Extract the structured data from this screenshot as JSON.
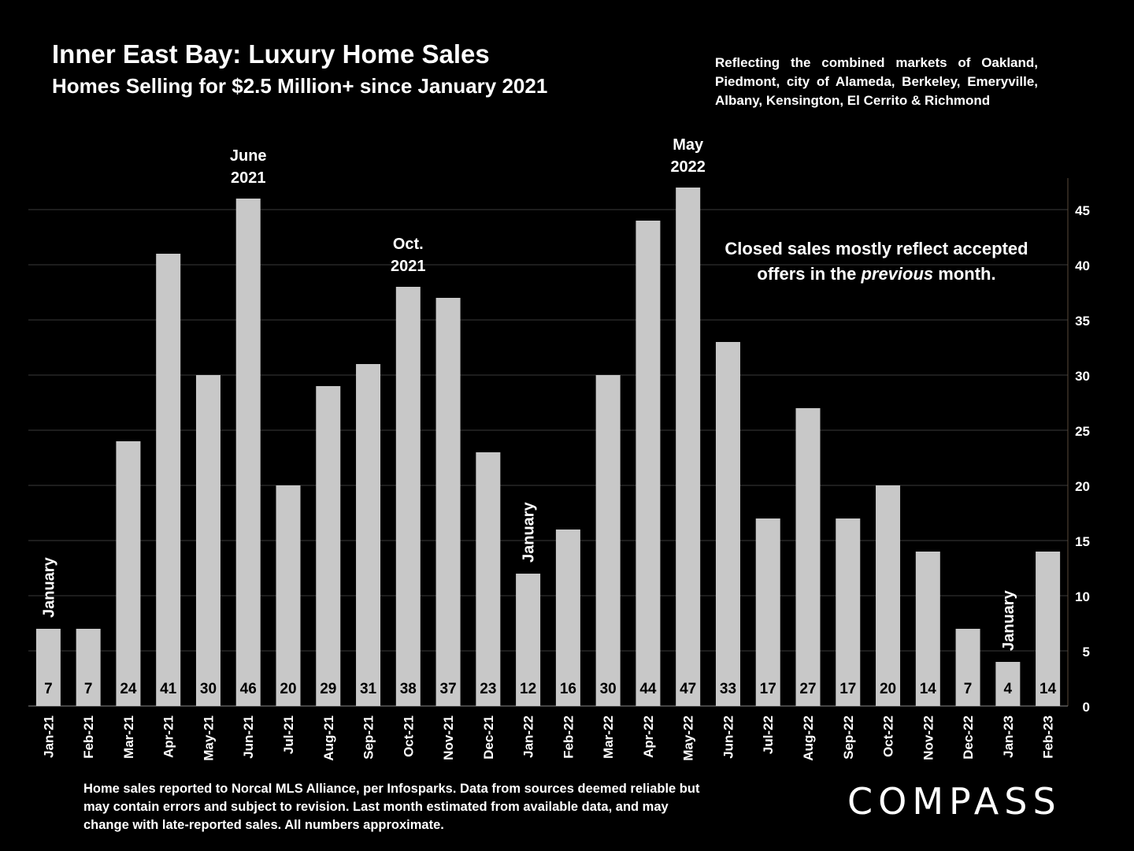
{
  "header": {
    "title": "Inner East Bay: Luxury Home Sales",
    "subtitle": "Homes Selling for $2.5 Million+ since January 2021",
    "note": "Reflecting the combined markets of Oakland, Piedmont, city of Alameda, Berkeley, Emeryville, Albany, Kensington, El Cerrito & Richmond"
  },
  "callout": {
    "line1": "Closed sales mostly reflect accepted",
    "line2_pre": "offers in the ",
    "line2_em": "previous",
    "line2_post": " month."
  },
  "footer": "Home sales reported to Norcal MLS Alliance, per Infosparks. Data from sources deemed reliable but may contain errors and subject to revision.  Last month estimated from available data, and may change with late-reported sales. All numbers approximate.",
  "logo": "COMPASS",
  "colors": {
    "bar": "#c8c8c8",
    "background": "#000000",
    "text": "#ffffff",
    "grid": "#3a3a3a"
  },
  "chart_data": {
    "type": "bar",
    "categories": [
      "Jan-21",
      "Feb-21",
      "Mar-21",
      "Apr-21",
      "May-21",
      "Jun-21",
      "Jul-21",
      "Aug-21",
      "Sep-21",
      "Oct-21",
      "Nov-21",
      "Dec-21",
      "Jan-22",
      "Feb-22",
      "Mar-22",
      "Apr-22",
      "May-22",
      "Jun-22",
      "Jul-22",
      "Aug-22",
      "Sep-22",
      "Oct-22",
      "Nov-22",
      "Dec-22",
      "Jan-23",
      "Feb-23"
    ],
    "values": [
      7,
      7,
      24,
      41,
      30,
      46,
      20,
      29,
      31,
      38,
      37,
      23,
      12,
      16,
      30,
      44,
      47,
      33,
      17,
      27,
      17,
      20,
      14,
      7,
      4,
      14
    ],
    "ylim": [
      0,
      48
    ],
    "yticks": [
      0,
      5,
      10,
      15,
      20,
      25,
      30,
      35,
      40,
      45
    ],
    "grid": true,
    "y_axis_side": "right",
    "annotations": [
      {
        "category": "Jan-21",
        "text": "January",
        "rotated": true
      },
      {
        "category": "Jan-22",
        "text": "January",
        "rotated": true
      },
      {
        "category": "Jan-23",
        "text": "January",
        "rotated": true
      },
      {
        "category": "Jun-21",
        "lines": [
          "June",
          "2021"
        ]
      },
      {
        "category": "Oct-21",
        "lines": [
          "Oct.",
          "2021"
        ]
      },
      {
        "category": "May-22",
        "lines": [
          "May",
          "2022"
        ]
      }
    ]
  }
}
